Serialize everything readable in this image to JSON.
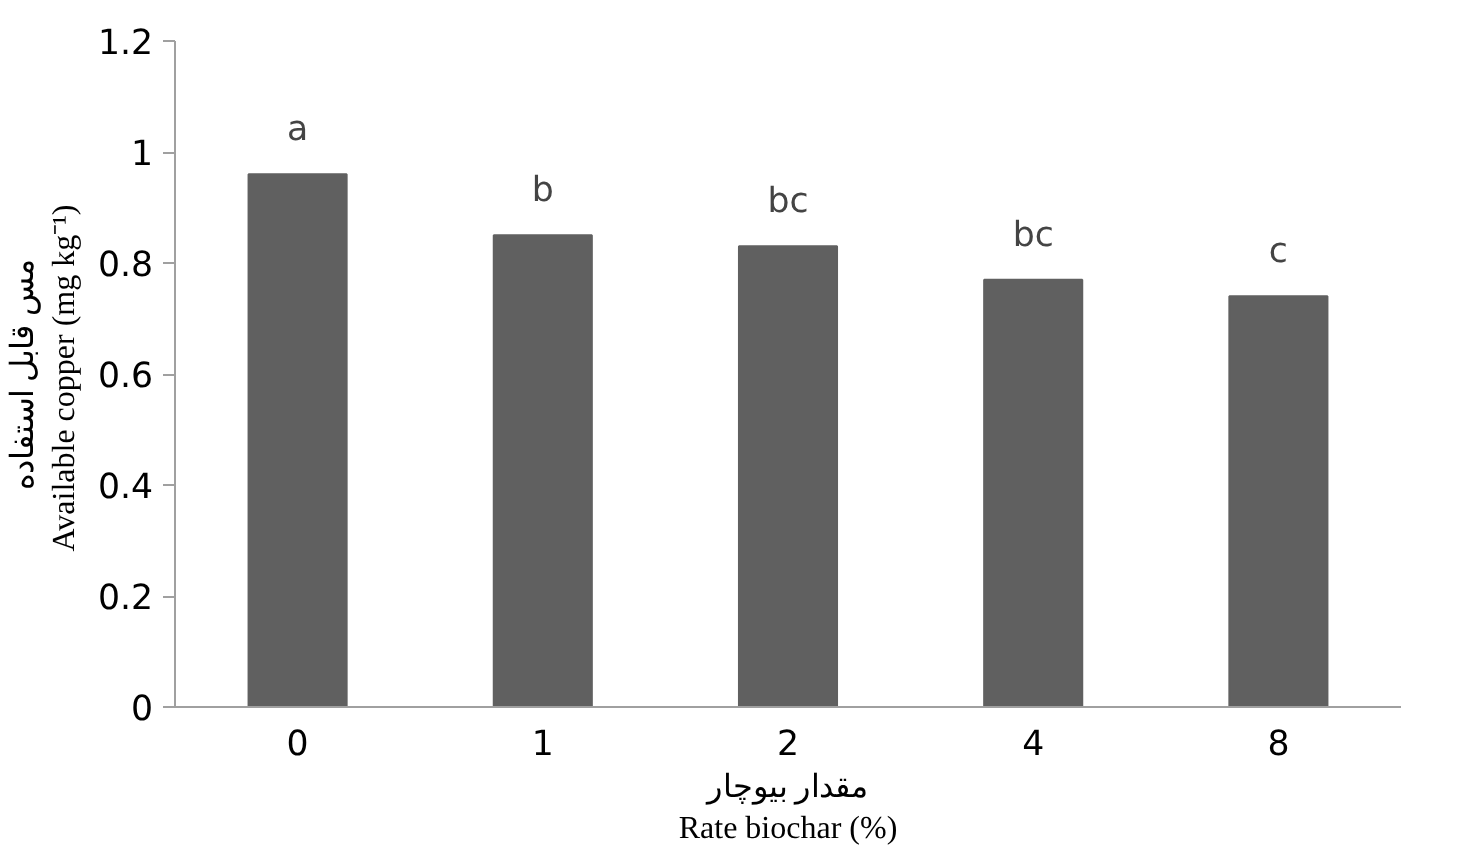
{
  "chart_data": {
    "type": "bar",
    "categories": [
      "0",
      "1",
      "2",
      "4",
      "8"
    ],
    "values": [
      0.96,
      0.85,
      0.83,
      0.77,
      0.74
    ],
    "color": "#606060",
    "xlabel": "مقدار بیوچار\nRate biochar (%)",
    "ylabel": "مس قابل استفاده\nAvailable copper  (mg kg⁻¹)",
    "ylim": [
      0,
      1.2
    ],
    "yticks": [
      0,
      0.2,
      0.4,
      0.6,
      0.8,
      1,
      1.2
    ],
    "grid": false,
    "annotations": [
      {
        "text": "a",
        "x": "0",
        "y": 0.96
      },
      {
        "text": "b",
        "x": "1",
        "y": 0.85
      },
      {
        "text": "bc",
        "x": "2",
        "y": 0.83
      },
      {
        "text": "bc",
        "x": "4",
        "y": 0.77
      },
      {
        "text": "c",
        "x": "8",
        "y": 0.74
      }
    ]
  }
}
